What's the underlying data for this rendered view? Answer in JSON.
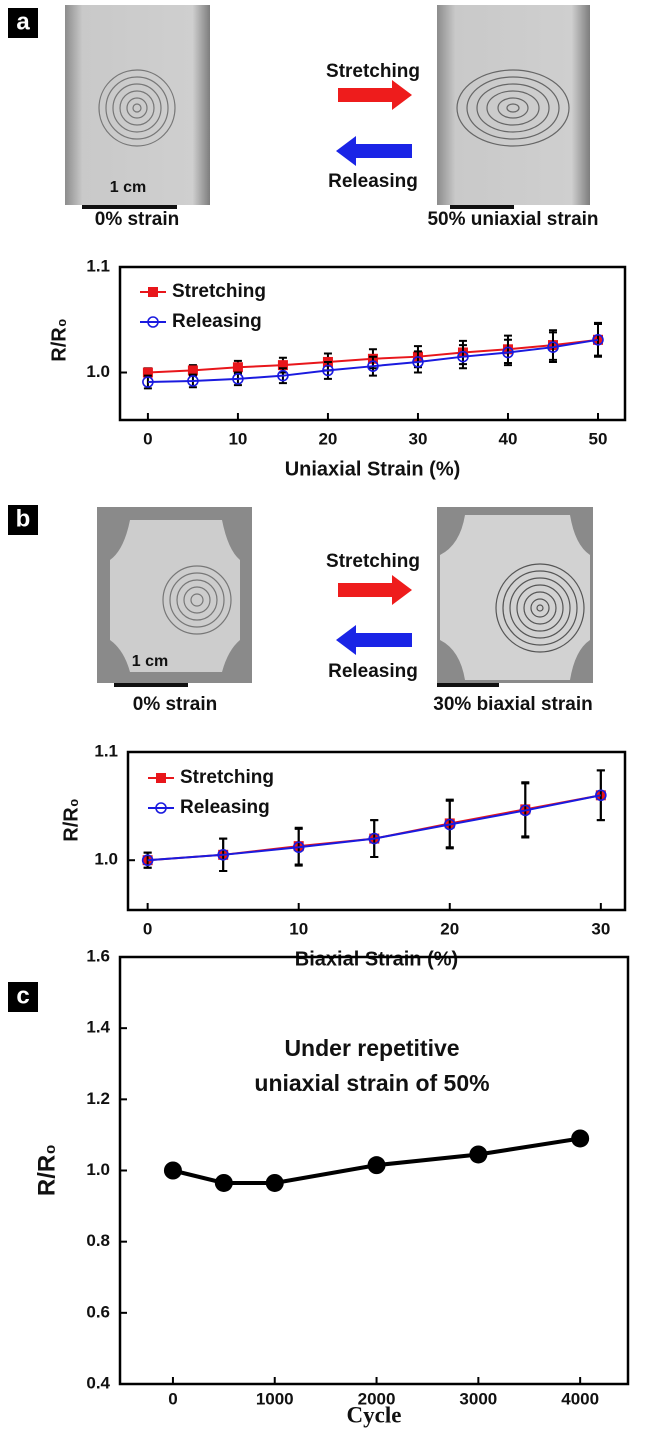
{
  "panels": [
    {
      "label": "a",
      "photos": [
        {
          "caption": "0% strain",
          "scale_bar": "1 cm"
        },
        {
          "caption": "50% uniaxial strain"
        }
      ],
      "arrows": [
        "Stretching",
        "Releasing"
      ]
    },
    {
      "label": "b",
      "photos": [
        {
          "caption": "0% strain",
          "scale_bar": "1 cm"
        },
        {
          "caption": "30% biaxial strain"
        }
      ],
      "arrows": [
        "Stretching",
        "Releasing"
      ]
    },
    {
      "label": "c"
    }
  ],
  "chart_data": [
    {
      "type": "line",
      "x_label": "Uniaxial Strain (%)",
      "y_label": "R/R₀",
      "x": [
        0,
        5,
        10,
        15,
        20,
        25,
        30,
        35,
        40,
        45,
        50
      ],
      "series": [
        {
          "name": "Stretching",
          "color": "#e8161b",
          "marker": "square",
          "values": [
            1.0,
            1.002,
            1.005,
            1.007,
            1.01,
            1.013,
            1.015,
            1.019,
            1.022,
            1.026,
            1.031
          ],
          "errors": [
            0.004,
            0.005,
            0.006,
            0.007,
            0.008,
            0.009,
            0.01,
            0.011,
            0.013,
            0.014,
            0.016
          ]
        },
        {
          "name": "Releasing",
          "color": "#1a1adf",
          "marker": "open-circle",
          "values": [
            0.991,
            0.992,
            0.994,
            0.997,
            1.002,
            1.006,
            1.01,
            1.015,
            1.019,
            1.024,
            1.031
          ],
          "errors": [
            0.006,
            0.006,
            0.006,
            0.007,
            0.008,
            0.009,
            0.01,
            0.011,
            0.012,
            0.014,
            0.015
          ]
        }
      ],
      "xlim": [
        -3.1,
        53
      ],
      "ylim": [
        0.955,
        1.1
      ],
      "xticks": [
        0,
        10,
        20,
        30,
        40,
        50
      ],
      "yticks": [
        {
          "value": 1.0,
          "label": "1.0"
        },
        {
          "value": 1.1,
          "label": "1.1"
        }
      ],
      "legend": "upper-left"
    },
    {
      "type": "line",
      "x_label": "Biaxial Strain (%)",
      "y_label": "R/R₀",
      "x": [
        0,
        5,
        10,
        15,
        20,
        25,
        30
      ],
      "series": [
        {
          "name": "Stretching",
          "color": "#e8161b",
          "marker": "square",
          "values": [
            1.0,
            1.005,
            1.013,
            1.02,
            1.034,
            1.047,
            1.06
          ],
          "errors": [
            0.007,
            0.015,
            0.017,
            0.017,
            0.022,
            0.025,
            0.023
          ]
        },
        {
          "name": "Releasing",
          "color": "#1a1adf",
          "marker": "open-circle",
          "values": [
            1.0,
            1.005,
            1.012,
            1.02,
            1.033,
            1.046,
            1.06
          ],
          "errors": [
            0.007,
            0.015,
            0.017,
            0.017,
            0.022,
            0.025,
            0.023
          ]
        }
      ],
      "xlim": [
        -1.3,
        31.6
      ],
      "ylim": [
        0.954,
        1.1
      ],
      "xticks": [
        0,
        10,
        20,
        30
      ],
      "yticks": [
        {
          "value": 1.0,
          "label": "1.0"
        },
        {
          "value": 1.1,
          "label": "1.1"
        }
      ],
      "legend": "upper-left"
    },
    {
      "type": "line",
      "x_label": "Cycle",
      "y_label": "R/R₀",
      "annotation": [
        "Under repetitive",
        "uniaxial strain of 50%"
      ],
      "x": [
        0,
        500,
        1000,
        2000,
        3000,
        4000
      ],
      "series": [
        {
          "color": "#000000",
          "marker": "filled-circle",
          "values": [
            1.0,
            0.965,
            0.965,
            1.015,
            1.045,
            1.09
          ]
        }
      ],
      "xlim": [
        -520,
        4470
      ],
      "ylim": [
        0.4,
        1.6
      ],
      "xticks": [
        0,
        1000,
        2000,
        3000,
        4000
      ],
      "yticks": [
        {
          "value": 0.4,
          "label": "0.4"
        },
        {
          "value": 0.6,
          "label": "0.6"
        },
        {
          "value": 0.8,
          "label": "0.8"
        },
        {
          "value": 1.0,
          "label": "1.0"
        },
        {
          "value": 1.2,
          "label": "1.2"
        },
        {
          "value": 1.4,
          "label": "1.4"
        },
        {
          "value": 1.6,
          "label": "1.6"
        }
      ]
    }
  ]
}
